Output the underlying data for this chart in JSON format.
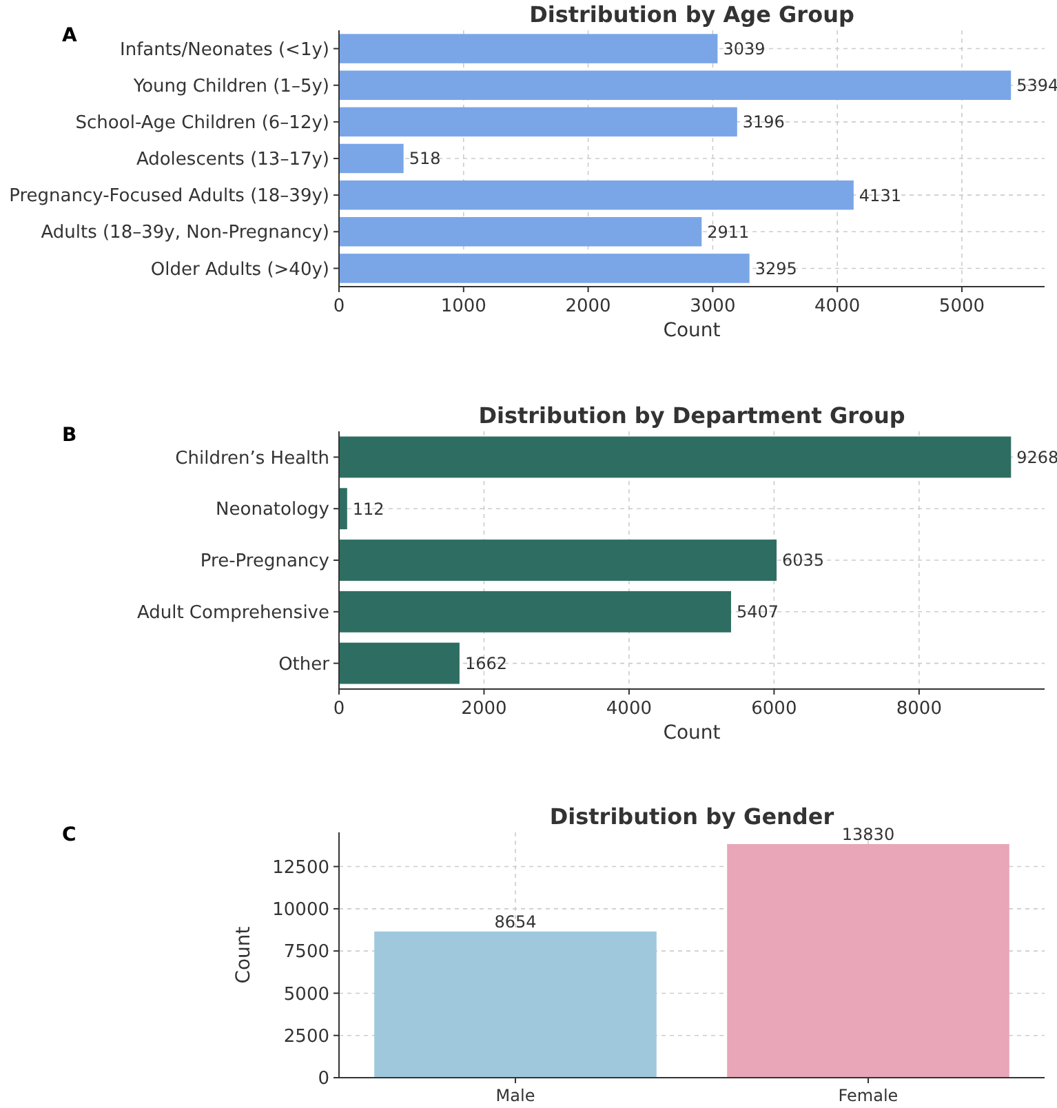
{
  "chart_data": [
    {
      "type": "bar",
      "orientation": "horizontal",
      "title": "Distribution by Age Group",
      "xlabel": "Count",
      "annotations": [
        "A"
      ],
      "categories": [
        "Infants/Neonates (<1y)",
        "Young Children (1–5y)",
        "School-Age Children (6–12y)",
        "Adolescents (13–17y)",
        "Pregnancy-Focused Adults (18–39y)",
        "Adults (18–39y, Non-Pregnancy)",
        "Older Adults (>40y)"
      ],
      "values": [
        3039,
        5394,
        3196,
        518,
        4131,
        2911,
        3295
      ],
      "color": "#7aa6e8",
      "xlim": [
        0,
        5664
      ],
      "xticks": [
        0,
        1000,
        2000,
        3000,
        4000,
        5000
      ],
      "grid": true,
      "data_labels": true
    },
    {
      "type": "bar",
      "orientation": "horizontal",
      "title": "Distribution by Department Group",
      "xlabel": "Count",
      "annotations": [
        "B"
      ],
      "categories": [
        "Children’s Health",
        "Neonatology",
        "Pre-Pregnancy",
        "Adult Comprehensive",
        "Other"
      ],
      "values": [
        9268,
        112,
        6035,
        5407,
        1662
      ],
      "color": "#2e6e62",
      "xlim": [
        0,
        9731
      ],
      "xticks": [
        0,
        2000,
        4000,
        6000,
        8000
      ],
      "grid": true,
      "data_labels": true
    },
    {
      "type": "bar",
      "title": "Distribution by Gender",
      "ylabel": "Count",
      "annotations": [
        "C"
      ],
      "categories": [
        "Male",
        "Female"
      ],
      "values": [
        8654,
        13830
      ],
      "colors": [
        "#9fc8dc",
        "#e8a6b8"
      ],
      "ylim": [
        0,
        14522
      ],
      "yticks": [
        0,
        2500,
        5000,
        7500,
        10000,
        12500
      ],
      "grid": true,
      "data_labels": true
    }
  ]
}
